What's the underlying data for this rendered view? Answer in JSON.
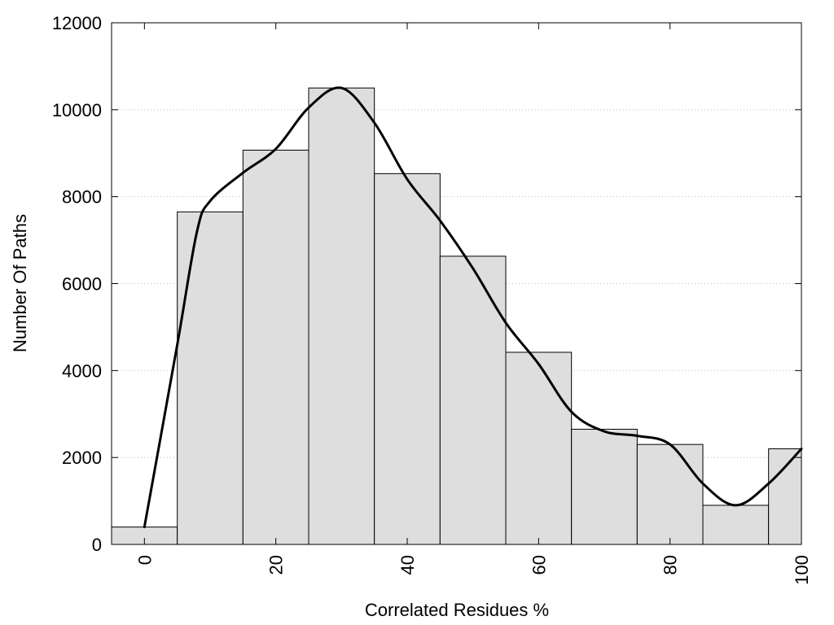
{
  "chart_data": {
    "type": "bar",
    "xlabel": "Correlated Residues %",
    "ylabel": "Number Of Paths",
    "xlim": [
      -5,
      100
    ],
    "ylim": [
      0,
      12000
    ],
    "x_ticks": [
      0,
      20,
      40,
      60,
      80,
      100
    ],
    "y_ticks": [
      0,
      2000,
      4000,
      6000,
      8000,
      10000,
      12000
    ],
    "x_tick_labels": [
      "0",
      "20",
      "40",
      "60",
      "80",
      "100"
    ],
    "y_tick_labels": [
      "0",
      "2000",
      "4000",
      "6000",
      "8000",
      "10000",
      "12000"
    ],
    "bin_width": 10,
    "bins": [
      {
        "center": 0,
        "value": 400
      },
      {
        "center": 10,
        "value": 7650
      },
      {
        "center": 20,
        "value": 9070
      },
      {
        "center": 30,
        "value": 10500
      },
      {
        "center": 40,
        "value": 8530
      },
      {
        "center": 50,
        "value": 6630
      },
      {
        "center": 60,
        "value": 4420
      },
      {
        "center": 70,
        "value": 2650
      },
      {
        "center": 80,
        "value": 2300
      },
      {
        "center": 90,
        "value": 900
      },
      {
        "center": 100,
        "value": 2200
      }
    ],
    "curve": {
      "type": "line",
      "x": [
        0,
        5,
        8,
        10,
        15,
        20,
        25,
        30,
        35,
        40,
        45,
        50,
        55,
        60,
        65,
        70,
        75,
        80,
        85,
        90,
        95,
        100
      ],
      "y": [
        400,
        4600,
        7200,
        7900,
        8550,
        9100,
        10050,
        10500,
        9700,
        8400,
        7450,
        6350,
        5100,
        4150,
        3050,
        2600,
        2500,
        2300,
        1400,
        900,
        1400,
        2200
      ]
    },
    "grid": {
      "y": true,
      "x": false,
      "style": "dotted"
    },
    "colors": {
      "bar_fill": "#dedede",
      "bar_stroke": "#000000",
      "line": "#000000",
      "grid": "#bbbbbb"
    }
  }
}
